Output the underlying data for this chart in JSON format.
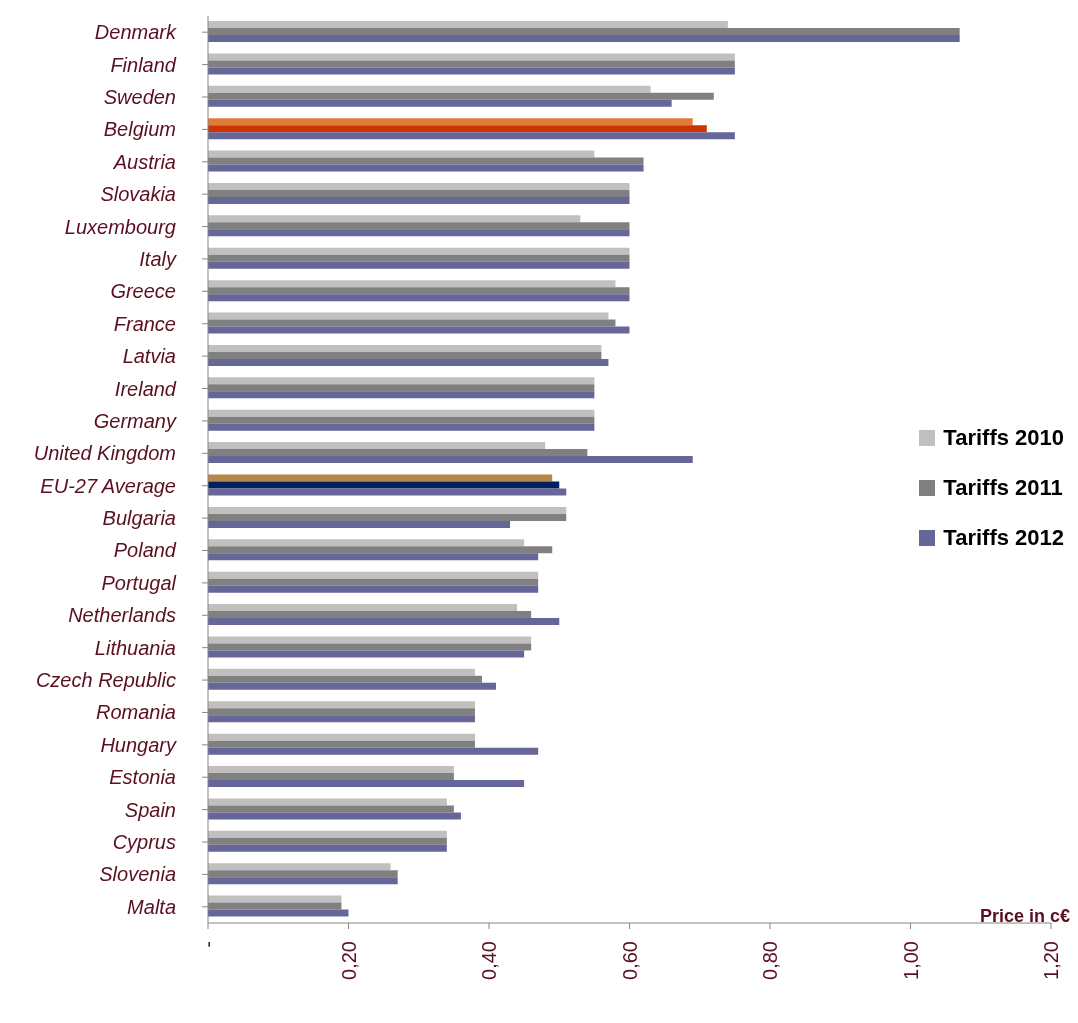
{
  "chart_data": {
    "type": "bar",
    "orientation": "horizontal",
    "xlabel": "Price in c€",
    "categories": [
      "Denmark",
      "Finland",
      "Sweden",
      "Belgium",
      "Austria",
      "Slovakia",
      "Luxembourg",
      "Italy",
      "Greece",
      "France",
      "Latvia",
      "Ireland",
      "Germany",
      "United Kingdom",
      "EU-27 Average",
      "Bulgaria",
      "Poland",
      "Portugal",
      "Netherlands",
      "Lithuania",
      "Czech Republic",
      "Romania",
      "Hungary",
      "Estonia",
      "Spain",
      "Cyprus",
      "Slovenia",
      "Malta"
    ],
    "series": [
      {
        "name": "Tariffs 2010",
        "color": "#c0c0c0",
        "colors": [
          "#c0c0c0",
          "#c0c0c0",
          "#c0c0c0",
          "#e07b39",
          "#c0c0c0",
          "#c0c0c0",
          "#c0c0c0",
          "#c0c0c0",
          "#c0c0c0",
          "#c0c0c0",
          "#c0c0c0",
          "#c0c0c0",
          "#c0c0c0",
          "#c0c0c0",
          "#b5884a",
          "#c0c0c0",
          "#c0c0c0",
          "#c0c0c0",
          "#c0c0c0",
          "#c0c0c0",
          "#c0c0c0",
          "#c0c0c0",
          "#c0c0c0",
          "#c0c0c0",
          "#c0c0c0",
          "#c0c0c0",
          "#c0c0c0",
          "#c0c0c0"
        ],
        "values": [
          0.74,
          0.75,
          0.63,
          0.69,
          0.55,
          0.6,
          0.53,
          0.6,
          0.58,
          0.57,
          0.56,
          0.55,
          0.55,
          0.48,
          0.49,
          0.51,
          0.45,
          0.47,
          0.44,
          0.46,
          0.38,
          0.38,
          0.38,
          0.35,
          0.34,
          0.34,
          0.26,
          0.19
        ]
      },
      {
        "name": "Tariffs 2011",
        "color": "#808080",
        "colors": [
          "#808080",
          "#808080",
          "#808080",
          "#cc3300",
          "#808080",
          "#808080",
          "#808080",
          "#808080",
          "#808080",
          "#808080",
          "#808080",
          "#808080",
          "#808080",
          "#808080",
          "#002060",
          "#808080",
          "#808080",
          "#808080",
          "#808080",
          "#808080",
          "#808080",
          "#808080",
          "#808080",
          "#808080",
          "#808080",
          "#808080",
          "#808080",
          "#808080"
        ],
        "values": [
          1.07,
          0.75,
          0.72,
          0.71,
          0.62,
          0.6,
          0.6,
          0.6,
          0.6,
          0.58,
          0.56,
          0.55,
          0.55,
          0.54,
          0.5,
          0.51,
          0.49,
          0.47,
          0.46,
          0.46,
          0.39,
          0.38,
          0.38,
          0.35,
          0.35,
          0.34,
          0.27,
          0.19
        ]
      },
      {
        "name": "Tariffs 2012",
        "color": "#666699",
        "values": [
          1.07,
          0.75,
          0.66,
          0.75,
          0.62,
          0.6,
          0.6,
          0.6,
          0.6,
          0.6,
          0.57,
          0.55,
          0.55,
          0.69,
          0.51,
          0.43,
          0.47,
          0.47,
          0.5,
          0.45,
          0.41,
          0.38,
          0.47,
          0.45,
          0.36,
          0.34,
          0.27,
          0.2
        ]
      }
    ],
    "xlim": [
      0,
      1.2
    ],
    "xticks": [
      {
        "value": 0,
        "label": "-"
      },
      {
        "value": 0.2,
        "label": "0,20"
      },
      {
        "value": 0.4,
        "label": "0,40"
      },
      {
        "value": 0.6,
        "label": "0,60"
      },
      {
        "value": 0.8,
        "label": "0,80"
      },
      {
        "value": 1.0,
        "label": "1,00"
      },
      {
        "value": 1.2,
        "label": "1,20"
      }
    ],
    "legend": "right",
    "grid": false
  }
}
